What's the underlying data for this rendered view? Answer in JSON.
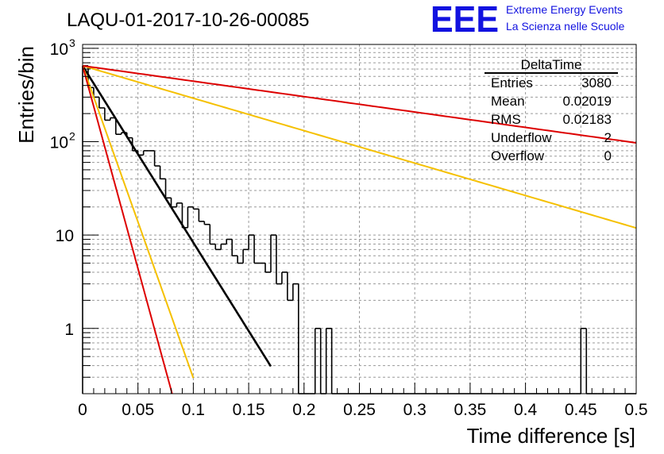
{
  "header": {
    "title": "LAQU-01-2017-10-26-00085",
    "logo_letters": "EEE",
    "logo_line1": "Extreme Energy Events",
    "logo_line2": "La Scienza nelle Scuole"
  },
  "stats_box": {
    "name": "DeltaTime",
    "rows": [
      {
        "label": "Entries",
        "value": "3080"
      },
      {
        "label": "Mean",
        "value": "0.02019"
      },
      {
        "label": "RMS",
        "value": "0.02183"
      },
      {
        "label": "Underflow",
        "value": "2"
      },
      {
        "label": "Overflow",
        "value": "0"
      }
    ]
  },
  "chart_data": {
    "type": "histogram",
    "xlabel": "Time difference [s]",
    "ylabel": "Entries/bin",
    "xlim": [
      0,
      0.5
    ],
    "ylim": [
      0.2,
      1100
    ],
    "yscale": "log",
    "grid": true,
    "x_ticks": [
      "0",
      "0.05",
      "0.1",
      "0.15",
      "0.2",
      "0.25",
      "0.3",
      "0.35",
      "0.4",
      "0.45",
      "0.5"
    ],
    "y_ticks": [
      {
        "value": 1,
        "label": "1"
      },
      {
        "value": 10,
        "label": "10"
      },
      {
        "value": 100,
        "label": "10",
        "exp": "2"
      },
      {
        "value": 1000,
        "label": "10",
        "exp": "3"
      }
    ],
    "bin_width": 0.005,
    "bin_counts": [
      650,
      380,
      300,
      230,
      170,
      180,
      120,
      125,
      110,
      80,
      72,
      80,
      80,
      55,
      40,
      25,
      20,
      22,
      12,
      20,
      19,
      14,
      13,
      8,
      7,
      8,
      9,
      6,
      5,
      7,
      10,
      5,
      5,
      4,
      10,
      3,
      4,
      2,
      3,
      0,
      0,
      0,
      1,
      0.2,
      1,
      0,
      0,
      0,
      0,
      0,
      0,
      0,
      0,
      0,
      0,
      0,
      0,
      0,
      0,
      0,
      0,
      0,
      0,
      0,
      0,
      0,
      0,
      0,
      0,
      0,
      0,
      0,
      0,
      0,
      0,
      0,
      0,
      0,
      0,
      0,
      0,
      0,
      0,
      0,
      0,
      0,
      0,
      0,
      0,
      0,
      1,
      0,
      0,
      0,
      0,
      0,
      0,
      0,
      0,
      0
    ],
    "series": [
      {
        "color": "#000000",
        "y0": 650,
        "slope": -43.6,
        "x_end": 0.17
      },
      {
        "color": "#f5c000",
        "y0": 650,
        "slope": -8.0,
        "x_end": 0.5
      },
      {
        "color": "#dd0000",
        "y0": 650,
        "slope": -3.8,
        "x_end": 0.5
      },
      {
        "color": "#f5c000",
        "y0": 650,
        "slope": -77.0,
        "x_end": 0.1
      },
      {
        "color": "#dd0000",
        "y0": 650,
        "slope": -100.0,
        "x_end": 0.1
      }
    ]
  }
}
